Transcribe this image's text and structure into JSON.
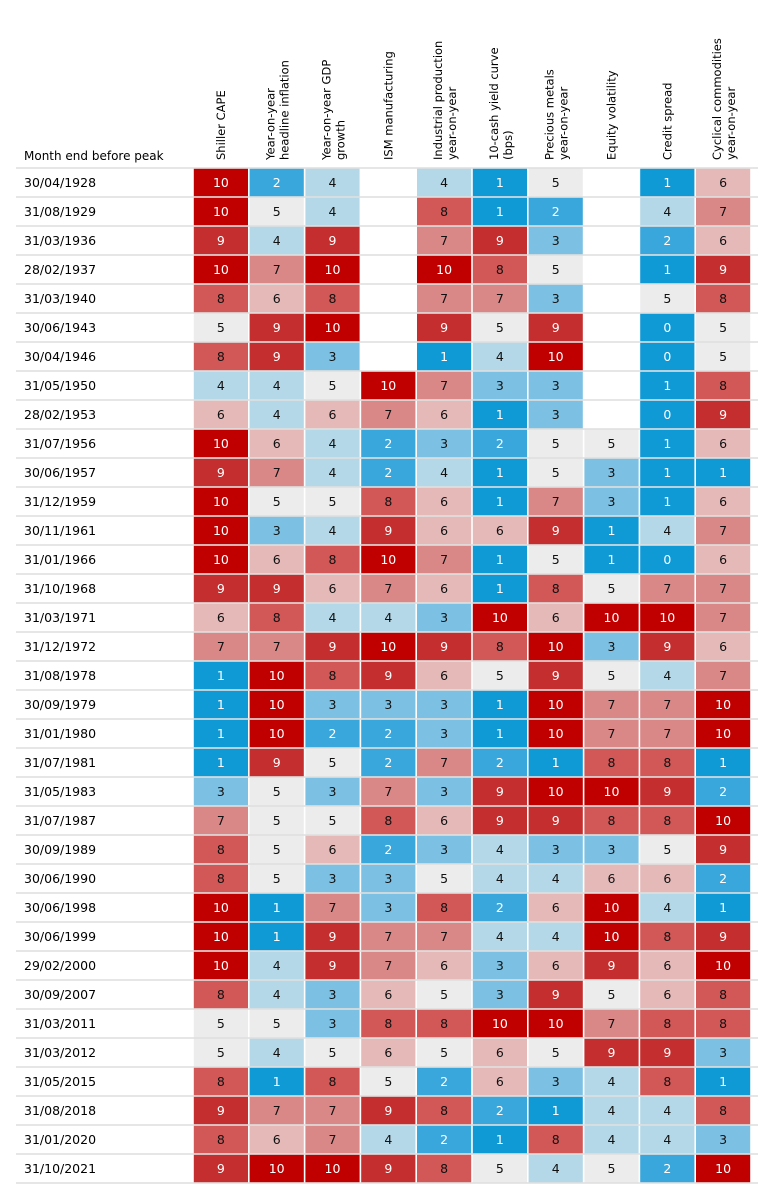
{
  "chart_data": {
    "type": "heatmap",
    "title": "",
    "row_header": "Month end before peak",
    "columns": [
      [
        "Shiller CAPE"
      ],
      [
        "Year-on-year",
        "headline inflation"
      ],
      [
        "Year-on-year GDP",
        "growth"
      ],
      [
        "ISM manufacturing"
      ],
      [
        "Industrial production",
        "year-on-year"
      ],
      [
        "10-cash yield curve",
        "(bps)"
      ],
      [
        "Precious metals",
        "year-on-year"
      ],
      [
        "Equity volatility"
      ],
      [
        "Credit spread"
      ],
      [
        "Cyclical commodities",
        "year-on-year"
      ]
    ],
    "scale": {
      "min": 0,
      "max": 10,
      "low_color": "#0f9ad6",
      "mid_color": "#eeeeee",
      "high_color": "#c00000"
    },
    "rows": [
      {
        "label": "30/04/1928",
        "values": [
          10,
          2,
          4,
          null,
          4,
          1,
          5,
          null,
          1,
          6
        ]
      },
      {
        "label": "31/08/1929",
        "values": [
          10,
          5,
          4,
          null,
          8,
          1,
          2,
          null,
          4,
          7
        ]
      },
      {
        "label": "31/03/1936",
        "values": [
          9,
          4,
          9,
          null,
          7,
          9,
          3,
          null,
          2,
          6
        ]
      },
      {
        "label": "28/02/1937",
        "values": [
          10,
          7,
          10,
          null,
          10,
          8,
          5,
          null,
          1,
          9
        ]
      },
      {
        "label": "31/03/1940",
        "values": [
          8,
          6,
          8,
          null,
          7,
          7,
          3,
          null,
          5,
          8
        ]
      },
      {
        "label": "30/06/1943",
        "values": [
          5,
          9,
          10,
          null,
          9,
          5,
          9,
          null,
          0,
          5
        ]
      },
      {
        "label": "30/04/1946",
        "values": [
          8,
          9,
          3,
          null,
          1,
          4,
          10,
          null,
          0,
          5
        ]
      },
      {
        "label": "31/05/1950",
        "values": [
          4,
          4,
          5,
          10,
          7,
          3,
          3,
          null,
          1,
          8
        ]
      },
      {
        "label": "28/02/1953",
        "values": [
          6,
          4,
          6,
          7,
          6,
          1,
          3,
          null,
          0,
          9
        ]
      },
      {
        "label": "31/07/1956",
        "values": [
          10,
          6,
          4,
          2,
          3,
          2,
          5,
          5,
          1,
          6
        ]
      },
      {
        "label": "30/06/1957",
        "values": [
          9,
          7,
          4,
          2,
          4,
          1,
          5,
          3,
          1,
          1
        ]
      },
      {
        "label": "31/12/1959",
        "values": [
          10,
          5,
          5,
          8,
          6,
          1,
          7,
          3,
          1,
          6
        ]
      },
      {
        "label": "30/11/1961",
        "values": [
          10,
          3,
          4,
          9,
          6,
          6,
          9,
          1,
          4,
          7
        ]
      },
      {
        "label": "31/01/1966",
        "values": [
          10,
          6,
          8,
          10,
          7,
          1,
          5,
          1,
          0,
          6
        ]
      },
      {
        "label": "31/10/1968",
        "values": [
          9,
          9,
          6,
          7,
          6,
          1,
          8,
          5,
          7,
          7
        ]
      },
      {
        "label": "31/03/1971",
        "values": [
          6,
          8,
          4,
          4,
          3,
          10,
          6,
          10,
          10,
          7
        ]
      },
      {
        "label": "31/12/1972",
        "values": [
          7,
          7,
          9,
          10,
          9,
          8,
          10,
          3,
          9,
          6
        ]
      },
      {
        "label": "31/08/1978",
        "values": [
          1,
          10,
          8,
          9,
          6,
          5,
          9,
          5,
          4,
          7
        ]
      },
      {
        "label": "30/09/1979",
        "values": [
          1,
          10,
          3,
          3,
          3,
          1,
          10,
          7,
          7,
          10
        ]
      },
      {
        "label": "31/01/1980",
        "values": [
          1,
          10,
          2,
          2,
          3,
          1,
          10,
          7,
          7,
          10
        ]
      },
      {
        "label": "31/07/1981",
        "values": [
          1,
          9,
          5,
          2,
          7,
          2,
          1,
          8,
          8,
          1
        ]
      },
      {
        "label": "31/05/1983",
        "values": [
          3,
          5,
          3,
          7,
          3,
          9,
          10,
          10,
          9,
          2
        ]
      },
      {
        "label": "31/07/1987",
        "values": [
          7,
          5,
          5,
          8,
          6,
          9,
          9,
          8,
          8,
          10
        ]
      },
      {
        "label": "30/09/1989",
        "values": [
          8,
          5,
          6,
          2,
          3,
          4,
          3,
          3,
          5,
          9
        ]
      },
      {
        "label": "30/06/1990",
        "values": [
          8,
          5,
          3,
          3,
          5,
          4,
          4,
          6,
          6,
          2
        ]
      },
      {
        "label": "30/06/1998",
        "values": [
          10,
          1,
          7,
          3,
          8,
          2,
          6,
          10,
          4,
          1
        ]
      },
      {
        "label": "30/06/1999",
        "values": [
          10,
          1,
          9,
          7,
          7,
          4,
          4,
          10,
          8,
          9
        ]
      },
      {
        "label": "29/02/2000",
        "values": [
          10,
          4,
          9,
          7,
          6,
          3,
          6,
          9,
          6,
          10
        ]
      },
      {
        "label": "30/09/2007",
        "values": [
          8,
          4,
          3,
          6,
          5,
          3,
          9,
          5,
          6,
          8
        ]
      },
      {
        "label": "31/03/2011",
        "values": [
          5,
          5,
          3,
          8,
          8,
          10,
          10,
          7,
          8,
          8
        ]
      },
      {
        "label": "31/03/2012",
        "values": [
          5,
          4,
          5,
          6,
          5,
          6,
          5,
          9,
          9,
          3
        ]
      },
      {
        "label": "31/05/2015",
        "values": [
          8,
          1,
          8,
          5,
          2,
          6,
          3,
          4,
          8,
          1
        ]
      },
      {
        "label": "31/08/2018",
        "values": [
          9,
          7,
          7,
          9,
          8,
          2,
          1,
          4,
          4,
          8
        ]
      },
      {
        "label": "31/01/2020",
        "values": [
          8,
          6,
          7,
          4,
          2,
          1,
          8,
          4,
          4,
          3
        ]
      },
      {
        "label": "31/10/2021",
        "values": [
          9,
          10,
          10,
          9,
          8,
          5,
          4,
          5,
          2,
          10
        ]
      }
    ]
  }
}
